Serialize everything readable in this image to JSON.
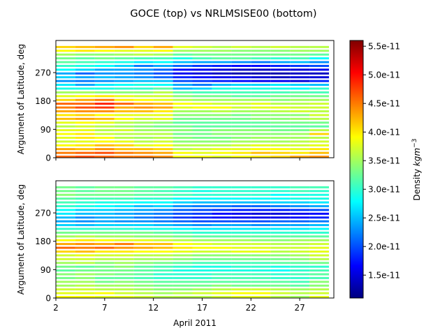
{
  "title": "GOCE (top) vs NRLMSISE00 (bottom)",
  "chart_data": [
    {
      "type": "heatmap",
      "name": "GOCE",
      "position": "top",
      "xlabel": "",
      "ylabel": "Argument of Latitude, deg",
      "xlim": [
        2,
        30.5
      ],
      "ylim": [
        0,
        372
      ],
      "y_ticks": [
        "0",
        "90",
        "180",
        "270"
      ],
      "y_tick_values": [
        0,
        90,
        180,
        270
      ],
      "x_tick_labels_visible": false,
      "column_edges_day": [
        2,
        4,
        6,
        8,
        10,
        12,
        14,
        16,
        18,
        20,
        22,
        24,
        26,
        28,
        30
      ],
      "row_height_deg": 12,
      "rows_deg_start": [
        0,
        12,
        24,
        36,
        48,
        60,
        72,
        84,
        96,
        108,
        120,
        132,
        144,
        156,
        168,
        180,
        192,
        204,
        216,
        228,
        240,
        252,
        264,
        276,
        288,
        300,
        312,
        324,
        336,
        348
      ],
      "values_1e11": [
        [
          4.6,
          4.7,
          4.6,
          4.5,
          4.5,
          4.4,
          3.9,
          3.9,
          3.8,
          3.9,
          4.0,
          4.1,
          4.3,
          4.4
        ],
        [
          4.5,
          4.6,
          4.7,
          4.5,
          4.4,
          4.3,
          3.9,
          3.8,
          3.9,
          4.0,
          4.2,
          4.1,
          4.0,
          4.2
        ],
        [
          4.3,
          4.2,
          4.4,
          4.2,
          4.2,
          4.1,
          3.6,
          3.7,
          3.8,
          3.8,
          3.9,
          3.9,
          3.8,
          4.0
        ],
        [
          3.9,
          4.0,
          4.2,
          4.1,
          3.8,
          3.9,
          3.6,
          3.6,
          3.6,
          3.7,
          3.8,
          3.7,
          3.7,
          3.8
        ],
        [
          3.7,
          3.8,
          3.9,
          3.8,
          3.6,
          3.7,
          3.4,
          3.4,
          3.4,
          3.5,
          3.5,
          3.5,
          3.6,
          3.7
        ],
        [
          3.8,
          4.0,
          3.9,
          3.6,
          3.5,
          3.6,
          3.4,
          3.3,
          3.3,
          3.4,
          3.5,
          3.5,
          3.5,
          3.6
        ],
        [
          3.9,
          4.0,
          3.7,
          3.6,
          3.6,
          3.6,
          3.3,
          3.3,
          3.4,
          3.4,
          3.4,
          3.4,
          3.5,
          4.1
        ],
        [
          3.8,
          3.8,
          3.6,
          3.7,
          3.5,
          3.5,
          3.4,
          3.3,
          3.4,
          3.4,
          3.4,
          3.3,
          3.3,
          3.6
        ],
        [
          3.6,
          3.7,
          3.6,
          3.5,
          3.4,
          3.3,
          3.3,
          3.2,
          3.2,
          3.2,
          3.2,
          3.2,
          3.2,
          3.2
        ],
        [
          3.8,
          3.9,
          3.8,
          3.6,
          3.5,
          3.4,
          3.2,
          3.2,
          3.2,
          3.2,
          3.2,
          3.3,
          3.3,
          3.3
        ],
        [
          4.2,
          4.3,
          4.2,
          3.9,
          3.7,
          3.8,
          3.3,
          3.3,
          3.3,
          3.3,
          3.4,
          3.4,
          3.5,
          3.6
        ],
        [
          4.0,
          4.1,
          3.9,
          3.8,
          3.8,
          3.8,
          3.4,
          3.4,
          3.4,
          3.3,
          3.4,
          3.4,
          3.4,
          3.7
        ],
        [
          4.3,
          4.4,
          4.4,
          4.2,
          4.2,
          4.0,
          3.5,
          3.5,
          3.6,
          3.5,
          3.5,
          3.6,
          3.7,
          3.6
        ],
        [
          4.5,
          4.7,
          4.8,
          4.3,
          4.4,
          4.3,
          3.8,
          3.9,
          3.9,
          3.7,
          3.8,
          3.8,
          3.7,
          3.7
        ],
        [
          4.6,
          4.6,
          4.9,
          4.6,
          4.3,
          4.2,
          3.9,
          3.8,
          3.7,
          3.7,
          3.8,
          3.6,
          3.6,
          3.7
        ],
        [
          4.1,
          4.3,
          4.5,
          4.0,
          3.9,
          3.8,
          3.6,
          3.5,
          3.5,
          3.5,
          3.5,
          3.4,
          3.5,
          3.5
        ],
        [
          3.8,
          3.9,
          4.0,
          3.8,
          3.7,
          3.7,
          3.4,
          3.3,
          3.3,
          3.2,
          3.2,
          3.3,
          3.3,
          3.3
        ],
        [
          3.5,
          3.5,
          3.4,
          3.4,
          3.4,
          3.6,
          3.2,
          3.1,
          3.1,
          3.1,
          3.1,
          3.1,
          3.2,
          3.1
        ],
        [
          2.9,
          2.9,
          2.9,
          3.0,
          3.0,
          3.2,
          2.5,
          2.6,
          2.9,
          2.9,
          2.9,
          2.9,
          2.8,
          3.0
        ],
        [
          2.7,
          2.4,
          2.7,
          2.8,
          2.9,
          2.8,
          2.4,
          2.2,
          2.5,
          2.6,
          2.6,
          2.7,
          2.6,
          2.5
        ],
        [
          2.3,
          2.2,
          2.3,
          2.4,
          2.5,
          2.5,
          2.0,
          1.9,
          1.8,
          1.7,
          1.6,
          1.6,
          1.5,
          1.8
        ],
        [
          2.6,
          2.4,
          2.5,
          2.4,
          2.3,
          2.1,
          1.8,
          1.7,
          1.6,
          1.6,
          1.5,
          1.4,
          1.5,
          1.5
        ],
        [
          2.4,
          2.1,
          2.3,
          2.3,
          2.2,
          2.0,
          1.6,
          1.5,
          1.4,
          1.3,
          1.3,
          1.3,
          1.4,
          1.4
        ],
        [
          2.8,
          2.6,
          2.4,
          2.4,
          2.3,
          2.1,
          1.7,
          1.6,
          1.5,
          1.4,
          1.4,
          1.5,
          1.5,
          1.6
        ],
        [
          3.0,
          2.9,
          2.8,
          2.6,
          2.2,
          2.4,
          2.1,
          1.9,
          1.8,
          1.7,
          1.7,
          1.8,
          1.9,
          2.0
        ],
        [
          3.2,
          3.1,
          3.0,
          2.9,
          2.7,
          2.8,
          2.5,
          2.4,
          2.4,
          2.3,
          2.2,
          2.4,
          2.5,
          2.3
        ],
        [
          3.3,
          3.2,
          3.3,
          3.2,
          3.1,
          3.1,
          2.9,
          3.1,
          3.2,
          3.2,
          3.1,
          3.0,
          3.1,
          2.8
        ],
        [
          3.5,
          3.4,
          3.4,
          3.5,
          3.6,
          3.5,
          3.2,
          3.3,
          3.3,
          3.3,
          3.3,
          3.3,
          3.3,
          3.2
        ],
        [
          3.9,
          4.0,
          3.9,
          3.8,
          3.8,
          3.9,
          3.5,
          3.5,
          3.5,
          3.4,
          3.4,
          3.4,
          3.5,
          3.5
        ],
        [
          4.1,
          4.2,
          4.3,
          4.4,
          4.1,
          4.3,
          3.8,
          3.7,
          3.6,
          3.7,
          3.6,
          3.7,
          3.6,
          3.6
        ]
      ]
    },
    {
      "type": "heatmap",
      "name": "NRLMSISE00",
      "position": "bottom",
      "xlabel": "April 2011",
      "ylabel": "Argument of Latitude, deg",
      "xlim": [
        2,
        30.5
      ],
      "ylim": [
        0,
        372
      ],
      "x_ticks": [
        "2",
        "7",
        "12",
        "17",
        "22",
        "27"
      ],
      "x_tick_values": [
        2,
        7,
        12,
        17,
        22,
        27
      ],
      "y_ticks": [
        "0",
        "90",
        "180",
        "270"
      ],
      "y_tick_values": [
        0,
        90,
        180,
        270
      ],
      "column_edges_day": [
        2,
        4,
        6,
        8,
        10,
        12,
        14,
        16,
        18,
        20,
        22,
        24,
        26,
        28,
        30
      ],
      "row_height_deg": 12,
      "rows_deg_start": [
        0,
        12,
        24,
        36,
        48,
        60,
        72,
        84,
        96,
        108,
        120,
        132,
        144,
        156,
        168,
        180,
        192,
        204,
        216,
        228,
        240,
        252,
        264,
        276,
        288,
        300,
        312,
        324,
        336,
        348
      ],
      "values_1e11": [
        [
          3.9,
          3.9,
          3.8,
          3.8,
          3.7,
          3.6,
          3.6,
          3.6,
          3.7,
          3.8,
          3.8,
          3.6,
          3.5,
          3.8
        ],
        [
          3.8,
          3.8,
          3.9,
          3.7,
          3.6,
          3.5,
          3.6,
          3.7,
          3.8,
          3.9,
          3.9,
          3.7,
          3.6,
          3.7
        ],
        [
          3.7,
          3.7,
          3.6,
          3.6,
          3.5,
          3.4,
          3.4,
          3.5,
          3.6,
          3.7,
          3.7,
          3.6,
          3.5,
          3.6
        ],
        [
          3.5,
          3.6,
          3.5,
          3.5,
          3.4,
          3.3,
          3.3,
          3.3,
          3.4,
          3.3,
          3.3,
          3.3,
          3.2,
          3.4
        ],
        [
          3.5,
          3.5,
          3.3,
          3.4,
          3.3,
          3.2,
          3.2,
          3.2,
          3.2,
          3.2,
          3.2,
          3.2,
          3.1,
          3.4
        ],
        [
          3.3,
          3.4,
          3.2,
          3.2,
          3.1,
          3.0,
          3.0,
          3.0,
          3.1,
          3.1,
          3.1,
          3.0,
          3.0,
          3.1
        ],
        [
          3.4,
          3.5,
          3.4,
          3.3,
          3.2,
          3.0,
          3.0,
          3.0,
          3.1,
          3.1,
          3.1,
          3.0,
          3.1,
          3.2
        ],
        [
          3.2,
          3.3,
          3.3,
          3.3,
          3.2,
          3.1,
          2.9,
          2.9,
          2.9,
          2.9,
          2.9,
          2.8,
          3.0,
          3.1
        ],
        [
          3.3,
          3.2,
          3.3,
          3.4,
          3.2,
          3.1,
          3.0,
          2.9,
          2.9,
          3.0,
          3.0,
          2.9,
          3.0,
          3.0
        ],
        [
          3.5,
          3.6,
          3.4,
          3.5,
          3.4,
          3.3,
          3.2,
          3.1,
          3.1,
          3.1,
          3.1,
          3.2,
          3.2,
          3.3
        ],
        [
          3.7,
          3.7,
          3.6,
          3.6,
          3.5,
          3.5,
          3.4,
          3.3,
          3.3,
          3.3,
          3.3,
          3.3,
          3.4,
          3.6
        ],
        [
          3.7,
          3.8,
          3.7,
          3.7,
          3.6,
          3.6,
          3.5,
          3.4,
          3.4,
          3.4,
          3.4,
          3.4,
          3.5,
          3.7
        ],
        [
          4.1,
          4.2,
          4.0,
          4.0,
          3.9,
          3.9,
          3.8,
          3.7,
          3.7,
          3.8,
          3.8,
          3.6,
          3.7,
          3.8
        ],
        [
          4.6,
          4.5,
          4.6,
          4.4,
          4.3,
          4.2,
          4.0,
          3.9,
          3.9,
          3.8,
          3.8,
          3.7,
          3.7,
          3.8
        ],
        [
          4.3,
          4.4,
          4.3,
          4.5,
          4.2,
          4.2,
          3.9,
          3.8,
          3.7,
          3.7,
          3.7,
          3.6,
          3.6,
          3.7
        ],
        [
          3.9,
          4.0,
          3.9,
          3.8,
          3.8,
          3.7,
          3.6,
          3.5,
          3.5,
          3.5,
          3.4,
          3.4,
          3.5,
          3.5
        ],
        [
          3.5,
          3.6,
          3.5,
          3.5,
          3.4,
          3.4,
          3.3,
          3.2,
          3.2,
          3.2,
          3.2,
          3.2,
          3.2,
          3.2
        ],
        [
          3.3,
          3.3,
          3.3,
          3.3,
          3.3,
          3.2,
          3.1,
          3.0,
          3.0,
          3.0,
          3.0,
          3.0,
          3.0,
          3.0
        ],
        [
          3.0,
          3.0,
          3.0,
          3.0,
          2.9,
          2.9,
          2.8,
          2.7,
          2.7,
          2.7,
          2.7,
          2.7,
          2.7,
          2.8
        ],
        [
          2.6,
          2.5,
          2.6,
          2.6,
          2.6,
          2.5,
          2.4,
          2.3,
          2.4,
          2.4,
          2.3,
          2.4,
          2.4,
          2.5
        ],
        [
          2.4,
          2.3,
          2.4,
          2.3,
          2.3,
          2.2,
          2.1,
          2.0,
          2.0,
          2.0,
          2.0,
          2.1,
          2.1,
          2.2
        ],
        [
          2.5,
          2.3,
          2.4,
          2.4,
          2.2,
          2.1,
          1.9,
          1.8,
          1.7,
          1.6,
          1.6,
          1.6,
          1.7,
          1.8
        ],
        [
          2.7,
          2.5,
          2.5,
          2.4,
          2.3,
          2.2,
          2.0,
          1.9,
          1.7,
          1.6,
          1.5,
          1.5,
          1.6,
          1.7
        ],
        [
          2.8,
          2.6,
          2.6,
          2.5,
          2.4,
          2.3,
          2.1,
          2.0,
          1.9,
          1.8,
          1.8,
          1.8,
          1.9,
          2.0
        ],
        [
          3.0,
          2.9,
          2.8,
          2.7,
          2.5,
          2.6,
          2.3,
          2.2,
          2.2,
          2.1,
          2.1,
          2.2,
          2.3,
          2.4
        ],
        [
          3.1,
          3.0,
          2.9,
          2.9,
          2.8,
          2.8,
          2.6,
          2.5,
          2.5,
          2.5,
          2.5,
          2.6,
          2.6,
          2.7
        ],
        [
          3.2,
          3.1,
          3.1,
          3.1,
          3.0,
          3.0,
          2.8,
          2.8,
          2.8,
          2.8,
          2.8,
          2.8,
          2.9,
          2.9
        ],
        [
          3.4,
          3.3,
          3.3,
          3.3,
          3.2,
          3.2,
          3.1,
          3.0,
          3.0,
          3.0,
          3.0,
          2.8,
          2.9,
          2.9
        ],
        [
          3.3,
          3.2,
          3.3,
          3.3,
          3.2,
          3.1,
          3.0,
          2.9,
          3.0,
          3.0,
          3.0,
          3.0,
          3.1,
          3.0
        ],
        [
          3.3,
          3.2,
          3.3,
          3.3,
          3.2,
          3.2,
          3.1,
          3.0,
          3.0,
          3.0,
          3.0,
          3.0,
          3.1,
          3.1
        ]
      ]
    }
  ],
  "colorbar": {
    "label": "Density $kgm^{-3}$",
    "label_prefix": "Density ",
    "label_unit": "kgm",
    "label_exp": "−3",
    "colormap": "jet",
    "range_1e11": [
      1.1,
      5.6
    ],
    "ticks": [
      "1.5e-11",
      "2.0e-11",
      "2.5e-11",
      "3.0e-11",
      "3.5e-11",
      "4.0e-11",
      "4.5e-11",
      "5.0e-11",
      "5.5e-11"
    ],
    "tick_values_1e11": [
      1.5,
      2.0,
      2.5,
      3.0,
      3.5,
      4.0,
      4.5,
      5.0,
      5.5
    ]
  }
}
